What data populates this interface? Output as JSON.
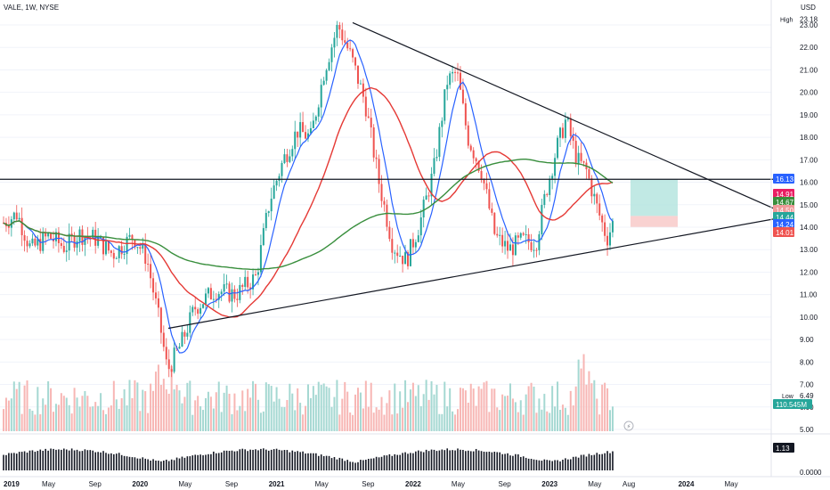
{
  "header": {
    "symbol": "VALE, 1W, NYSE",
    "currency": "USD"
  },
  "chart_data": {
    "type": "candlestick",
    "price_axis": {
      "ticks": [
        "23.00",
        "22.00",
        "21.00",
        "20.00",
        "19.00",
        "18.00",
        "17.00",
        "16.00",
        "15.00",
        "14.00",
        "13.00",
        "12.00",
        "11.00",
        "10.00",
        "9.00",
        "8.00",
        "7.00",
        "6.00",
        "5.00"
      ],
      "range": [
        5,
        23.18
      ]
    },
    "time_axis": {
      "labels": [
        "2019",
        "May",
        "Sep",
        "2020",
        "May",
        "Sep",
        "2021",
        "May",
        "Sep",
        "2022",
        "May",
        "Sep",
        "2023",
        "May",
        "Aug",
        "2024",
        "May"
      ]
    },
    "badges": {
      "high": {
        "label": "High",
        "value": "23.18"
      },
      "low": {
        "label": "Low",
        "value": "6.49"
      },
      "volume": "110.545M",
      "oscillator": "1.13",
      "oscillator_zero": "0.0000",
      "prices": [
        {
          "value": "16.13",
          "color": "#2962ff"
        },
        {
          "value": "14.91",
          "color": "#e91e63"
        },
        {
          "value": "14.67",
          "color": "#388e3c"
        },
        {
          "value": "14.50",
          "color": "#ef9a9a"
        },
        {
          "value": "14.44",
          "color": "#26a69a"
        },
        {
          "value": "14.24",
          "color": "#2962ff"
        },
        {
          "value": "14.01",
          "color": "#ef5350"
        }
      ]
    },
    "overlays": {
      "horizontal_line": 16.13,
      "triangle_upper": [
        [
          "2021-04",
          23.1
        ],
        [
          "2024-06",
          14.5
        ]
      ],
      "triangle_lower": [
        [
          "2020-03",
          9.5
        ],
        [
          "2024-06",
          14.5
        ]
      ],
      "position_target_zone": [
        14.5,
        16.13
      ],
      "position_stop_zone": [
        14.01,
        14.5
      ]
    },
    "series": [
      {
        "name": "price"
      },
      {
        "name": "ma-fast"
      },
      {
        "name": "ma-mid"
      },
      {
        "name": "ma-slow"
      }
    ],
    "colors": {
      "up": "#26a69a",
      "down": "#ef5350",
      "ma_fast": "#2962ff",
      "ma_mid": "#e53935",
      "ma_slow": "#388e3c"
    }
  }
}
